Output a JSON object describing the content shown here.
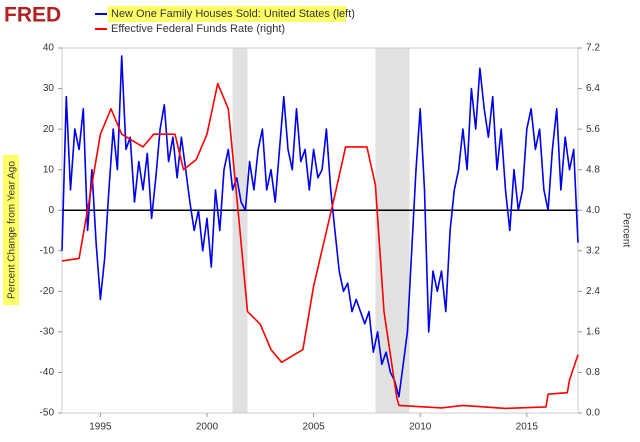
{
  "brand": "FRED",
  "chart_data": {
    "type": "line",
    "ylabel": "Percent Change from Year Ago",
    "y2label": "Percent",
    "xlim": [
      1993.2,
      2017.4
    ],
    "xticks": [
      1995,
      2000,
      2005,
      2010,
      2015
    ],
    "ylim": [
      -50,
      40
    ],
    "yticks": [
      -50,
      -40,
      -30,
      -20,
      -10,
      0,
      10,
      20,
      30,
      40
    ],
    "y2lim": [
      0,
      7.2
    ],
    "y2ticks": [
      {
        "value": 0,
        "label": "0.0"
      },
      0.8,
      1.6,
      2.4,
      3.2,
      {
        "value": 4,
        "label": "4.0"
      },
      4.8,
      5.6,
      6.4,
      7.2
    ],
    "grid": false,
    "recessions": [
      [
        2001.2,
        2001.9
      ],
      [
        2007.9,
        2009.5
      ]
    ],
    "series": [
      {
        "name": "New One Family Houses Sold: United States (left)",
        "color": "#0000ee",
        "axis": "y",
        "x": [
          1993.2,
          1993.4,
          1993.6,
          1993.8,
          1994.0,
          1994.2,
          1994.4,
          1994.6,
          1994.8,
          1995.0,
          1995.2,
          1995.4,
          1995.6,
          1995.8,
          1996.0,
          1996.2,
          1996.4,
          1996.6,
          1996.8,
          1997.0,
          1997.2,
          1997.4,
          1997.6,
          1997.8,
          1998.0,
          1998.2,
          1998.4,
          1998.6,
          1998.8,
          1999.0,
          1999.2,
          1999.4,
          1999.6,
          1999.8,
          2000.0,
          2000.2,
          2000.4,
          2000.6,
          2000.8,
          2001.0,
          2001.2,
          2001.4,
          2001.6,
          2001.8,
          2002.0,
          2002.2,
          2002.4,
          2002.6,
          2002.8,
          2003.0,
          2003.2,
          2003.4,
          2003.6,
          2003.8,
          2004.0,
          2004.2,
          2004.4,
          2004.6,
          2004.8,
          2005.0,
          2005.2,
          2005.4,
          2005.6,
          2005.8,
          2006.0,
          2006.2,
          2006.4,
          2006.6,
          2006.8,
          2007.0,
          2007.2,
          2007.4,
          2007.6,
          2007.8,
          2008.0,
          2008.2,
          2008.4,
          2008.6,
          2008.8,
          2009.0,
          2009.2,
          2009.4,
          2009.6,
          2009.8,
          2010.0,
          2010.2,
          2010.4,
          2010.6,
          2010.8,
          2011.0,
          2011.2,
          2011.4,
          2011.6,
          2011.8,
          2012.0,
          2012.2,
          2012.4,
          2012.6,
          2012.8,
          2013.0,
          2013.2,
          2013.4,
          2013.6,
          2013.8,
          2014.0,
          2014.2,
          2014.4,
          2014.6,
          2014.8,
          2015.0,
          2015.2,
          2015.4,
          2015.6,
          2015.8,
          2016.0,
          2016.2,
          2016.4,
          2016.6,
          2016.8,
          2017.0,
          2017.2,
          2017.4
        ],
        "values": [
          -10,
          28,
          5,
          20,
          15,
          25,
          -5,
          10,
          -8,
          -22,
          -12,
          5,
          20,
          10,
          38,
          15,
          18,
          2,
          12,
          5,
          14,
          -2,
          8,
          20,
          26,
          12,
          18,
          8,
          18,
          10,
          2,
          -5,
          0,
          -10,
          -2,
          -14,
          5,
          -5,
          10,
          15,
          5,
          8,
          2,
          0,
          12,
          5,
          15,
          20,
          5,
          10,
          2,
          15,
          28,
          15,
          10,
          25,
          12,
          15,
          5,
          15,
          8,
          10,
          20,
          5,
          -5,
          -15,
          -20,
          -18,
          -25,
          -22,
          -25,
          -28,
          -25,
          -35,
          -30,
          -38,
          -35,
          -40,
          -42,
          -46,
          -38,
          -30,
          -10,
          10,
          25,
          5,
          -30,
          -15,
          -20,
          -15,
          -25,
          -5,
          5,
          10,
          20,
          10,
          30,
          20,
          35,
          25,
          18,
          28,
          10,
          20,
          5,
          -5,
          10,
          0,
          5,
          20,
          25,
          15,
          20,
          5,
          0,
          15,
          25,
          5,
          18,
          10,
          15,
          -8
        ]
      },
      {
        "name": "Effective Federal Funds Rate (right)",
        "color": "#ff0000",
        "axis": "y2",
        "x": [
          1993.2,
          1994.0,
          1994.5,
          1995.0,
          1995.5,
          1996.0,
          1997.0,
          1997.5,
          1998.5,
          1998.9,
          1999.5,
          2000.0,
          2000.5,
          2001.0,
          2001.5,
          2001.9,
          2002.5,
          2003.0,
          2003.5,
          2004.5,
          2005.0,
          2006.0,
          2006.5,
          2007.5,
          2007.9,
          2008.3,
          2008.9,
          2009.0,
          2011.0,
          2012.0,
          2014.0,
          2015.9,
          2016.0,
          2016.9,
          2017.0,
          2017.4
        ],
        "values": [
          3.0,
          3.05,
          4.25,
          5.5,
          6.0,
          5.5,
          5.25,
          5.5,
          5.5,
          4.8,
          5.0,
          5.5,
          6.5,
          6.0,
          3.8,
          2.0,
          1.75,
          1.25,
          1.0,
          1.25,
          2.5,
          4.3,
          5.25,
          5.25,
          4.5,
          2.0,
          0.3,
          0.15,
          0.1,
          0.15,
          0.09,
          0.12,
          0.37,
          0.4,
          0.65,
          1.15
        ]
      }
    ]
  }
}
